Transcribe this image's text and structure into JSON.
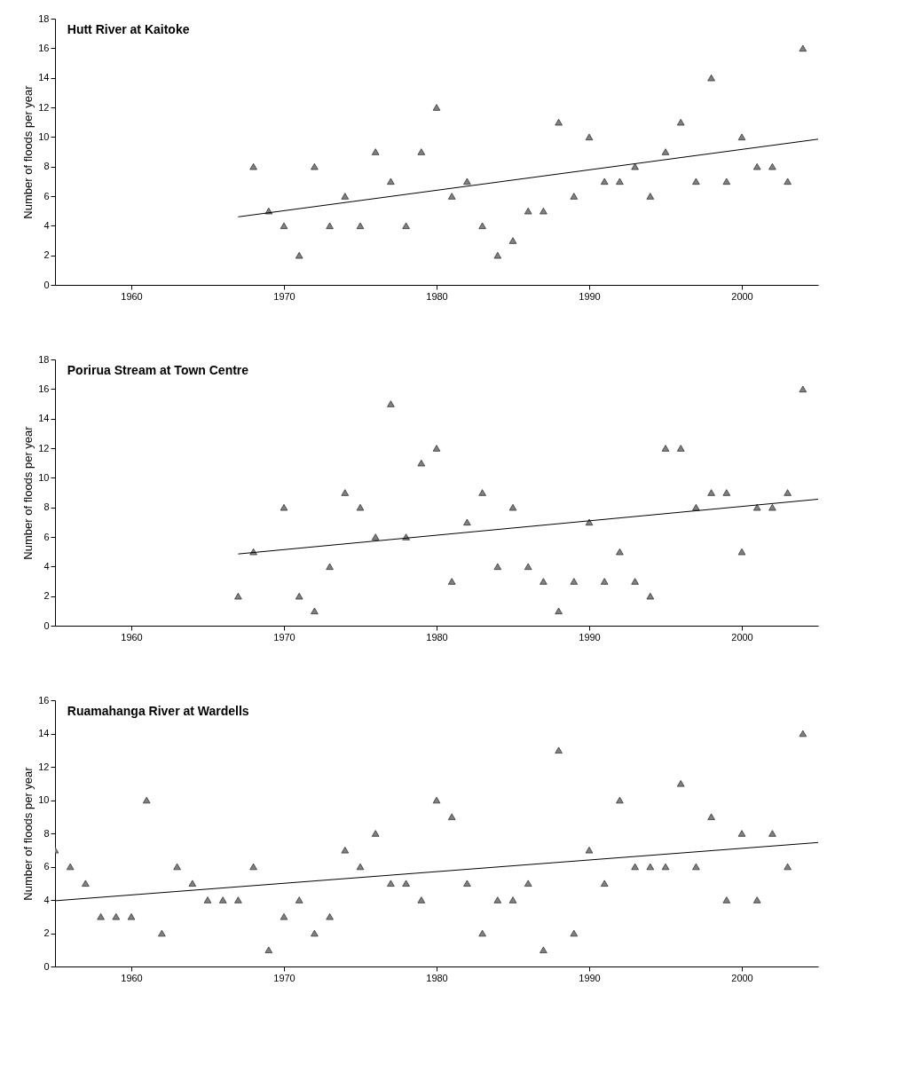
{
  "chart_data": [
    {
      "type": "scatter",
      "title": "Hutt River at Kaitoke",
      "ylabel": "Number of floods per year",
      "xlim": [
        1955,
        2005
      ],
      "xticks": [
        1960,
        1970,
        1980,
        1990,
        2000
      ],
      "ylim": [
        0,
        18
      ],
      "yticks": [
        0,
        2,
        4,
        6,
        8,
        10,
        12,
        14,
        16,
        18
      ],
      "grid": false,
      "series": [
        {
          "marker": "triangle",
          "color": "#808080",
          "x": [
            1968,
            1969,
            1970,
            1971,
            1972,
            1973,
            1974,
            1975,
            1976,
            1977,
            1978,
            1979,
            1980,
            1981,
            1982,
            1983,
            1984,
            1985,
            1986,
            1987,
            1988,
            1989,
            1990,
            1991,
            1992,
            1993,
            1994,
            1995,
            1996,
            1997,
            1998,
            1999,
            2000,
            2001,
            2002,
            2003,
            2004
          ],
          "values": [
            8,
            5,
            4,
            2,
            8,
            4,
            6,
            4,
            9,
            7,
            4,
            9,
            12,
            6,
            7,
            4,
            2,
            3,
            5,
            5,
            11,
            6,
            10,
            7,
            7,
            8,
            6,
            9,
            11,
            7,
            14,
            7,
            10,
            8,
            8,
            7,
            16
          ]
        },
        {
          "type": "line",
          "color": "#000000",
          "x": [
            1967,
            2005
          ],
          "values": [
            4.6,
            9.85
          ]
        }
      ]
    },
    {
      "type": "scatter",
      "title": "Porirua Stream at Town Centre",
      "ylabel": "Number of floods per year",
      "xlim": [
        1955,
        2005
      ],
      "xticks": [
        1960,
        1970,
        1980,
        1990,
        2000
      ],
      "ylim": [
        0,
        18
      ],
      "yticks": [
        0,
        2,
        4,
        6,
        8,
        10,
        12,
        14,
        16,
        18
      ],
      "grid": false,
      "series": [
        {
          "marker": "triangle",
          "color": "#808080",
          "x": [
            1967,
            1968,
            1970,
            1971,
            1972,
            1973,
            1974,
            1975,
            1976,
            1977,
            1978,
            1979,
            1980,
            1981,
            1982,
            1983,
            1984,
            1985,
            1986,
            1987,
            1988,
            1989,
            1990,
            1991,
            1992,
            1993,
            1994,
            1995,
            1996,
            1997,
            1998,
            1999,
            2000,
            2001,
            2002,
            2003,
            2004
          ],
          "values": [
            2,
            5,
            8,
            2,
            1,
            4,
            9,
            8,
            6,
            15,
            6,
            11,
            12,
            3,
            7,
            9,
            4,
            8,
            4,
            3,
            1,
            3,
            7,
            3,
            5,
            3,
            2,
            12,
            12,
            8,
            9,
            9,
            5,
            8,
            8,
            9,
            16
          ]
        },
        {
          "type": "line",
          "color": "#000000",
          "x": [
            1967,
            2005
          ],
          "values": [
            4.85,
            8.55
          ]
        }
      ]
    },
    {
      "type": "scatter",
      "title": "Ruamahanga River at Wardells",
      "ylabel": "Number of floods per year",
      "xlim": [
        1955,
        2005
      ],
      "xticks": [
        1960,
        1970,
        1980,
        1990,
        2000
      ],
      "ylim": [
        0,
        16
      ],
      "yticks": [
        0,
        2,
        4,
        6,
        8,
        10,
        12,
        14,
        16
      ],
      "grid": false,
      "series": [
        {
          "marker": "triangle",
          "color": "#808080",
          "x": [
            1955,
            1956,
            1957,
            1958,
            1959,
            1960,
            1961,
            1962,
            1963,
            1964,
            1965,
            1966,
            1967,
            1968,
            1969,
            1970,
            1971,
            1972,
            1973,
            1974,
            1975,
            1976,
            1977,
            1978,
            1979,
            1980,
            1981,
            1982,
            1983,
            1984,
            1985,
            1986,
            1987,
            1988,
            1989,
            1990,
            1991,
            1992,
            1993,
            1994,
            1995,
            1996,
            1997,
            1998,
            1999,
            2000,
            2001,
            2002,
            2003,
            2004
          ],
          "values": [
            7,
            6,
            5,
            3,
            3,
            3,
            10,
            2,
            6,
            5,
            4,
            4,
            4,
            6,
            1,
            3,
            4,
            2,
            3,
            7,
            6,
            8,
            5,
            5,
            4,
            10,
            9,
            5,
            2,
            4,
            4,
            5,
            1,
            13,
            2,
            7,
            5,
            10,
            6,
            6,
            6,
            11,
            6,
            9,
            4,
            8,
            4,
            8,
            6,
            14
          ]
        },
        {
          "type": "line",
          "color": "#000000",
          "x": [
            1955,
            2005
          ],
          "values": [
            3.95,
            7.45
          ]
        }
      ]
    }
  ]
}
